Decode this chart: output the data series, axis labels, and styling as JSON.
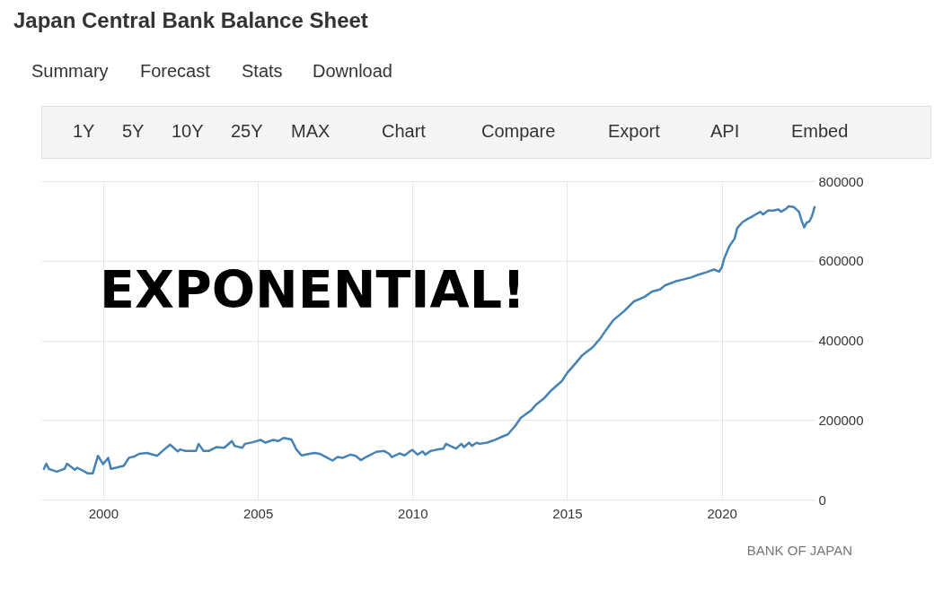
{
  "chart_data": [
    {
      "type": "other",
      "title": "Japan Central Bank Balance Sheet",
      "annotations": [
        "Summary",
        "Forecast",
        "Stats",
        "Download",
        "1Y",
        "5Y",
        "10Y",
        "25Y",
        "MAX",
        "Chart",
        "Compare",
        "Export",
        "API",
        "Embed"
      ]
    },
    {
      "type": "line",
      "x": [
        "1998-02",
        "1998-03",
        "1998-04",
        "1998-07",
        "1998-10",
        "1998-11",
        "1999-02",
        "1999-03",
        "1999-07",
        "1999-09",
        "1999-11",
        "2000-01",
        "2000-03",
        "2000-04",
        "2000-06",
        "2000-09",
        "2000-11",
        "2001-01",
        "2001-03",
        "2001-06",
        "2001-10",
        "2001-12",
        "2002-03",
        "2002-06",
        "2002-07",
        "2002-09",
        "2003-01",
        "2003-02",
        "2003-04",
        "2003-06",
        "2003-09",
        "2003-12",
        "2004-03",
        "2004-04",
        "2004-07",
        "2004-08",
        "2004-11",
        "2005-02",
        "2005-04",
        "2005-07",
        "2005-09",
        "2005-11",
        "2006-02",
        "2006-04",
        "2006-06",
        "2006-09",
        "2006-11",
        "2007-01",
        "2007-04",
        "2007-06",
        "2007-08",
        "2007-10",
        "2008-01",
        "2008-03",
        "2008-05",
        "2008-07",
        "2008-11",
        "2009-02",
        "2009-04",
        "2009-05",
        "2009-08",
        "2009-10",
        "2009-12",
        "2010-01",
        "2010-03",
        "2010-05",
        "2010-06",
        "2010-08",
        "2010-11",
        "2011-01",
        "2011-02",
        "2011-04",
        "2011-06",
        "2011-08",
        "2011-09",
        "2011-11",
        "2011-12",
        "2012-02",
        "2012-03",
        "2012-06",
        "2012-09",
        "2012-11",
        "2013-02",
        "2013-05",
        "2013-07",
        "2013-11",
        "2014-01",
        "2014-04",
        "2014-07",
        "2014-11",
        "2015-01",
        "2015-04",
        "2015-07",
        "2015-11",
        "2016-02",
        "2016-04",
        "2016-07",
        "2016-11",
        "2017-03",
        "2017-07",
        "2017-10",
        "2018-01",
        "2018-03",
        "2018-07",
        "2018-10",
        "2019-01",
        "2019-04",
        "2019-07",
        "2019-10",
        "2019-12",
        "2020-01",
        "2020-02",
        "2020-04",
        "2020-06",
        "2020-07",
        "2020-09",
        "2020-11",
        "2021-01",
        "2021-02",
        "2021-04",
        "2021-05",
        "2021-07",
        "2021-09",
        "2021-11",
        "2021-12",
        "2022-02",
        "2022-03",
        "2022-05",
        "2022-07",
        "2022-08",
        "2022-09",
        "2022-10",
        "2022-11",
        "2022-12",
        "2023-01"
      ],
      "series": [
        {
          "color": "#4682b4",
          "values": [
            77000,
            90000,
            77000,
            70000,
            77000,
            90000,
            75000,
            80000,
            66000,
            66000,
            110000,
            89000,
            105000,
            77000,
            80000,
            85000,
            105000,
            108000,
            115000,
            117000,
            110000,
            122000,
            138000,
            121000,
            126000,
            122000,
            122000,
            140000,
            122000,
            122000,
            132000,
            130000,
            147000,
            135000,
            130000,
            140000,
            144000,
            150000,
            143000,
            150000,
            147000,
            155000,
            151000,
            126000,
            111000,
            115000,
            117000,
            115000,
            105000,
            98000,
            107000,
            105000,
            113000,
            110000,
            99000,
            107000,
            120000,
            122000,
            115000,
            107000,
            116000,
            111000,
            121000,
            125000,
            113000,
            121000,
            113000,
            122000,
            126000,
            128000,
            140000,
            134000,
            128000,
            140000,
            132000,
            143000,
            135000,
            143000,
            140000,
            143000,
            150000,
            156000,
            164000,
            186000,
            205000,
            224000,
            239000,
            254000,
            275000,
            298000,
            318000,
            340000,
            363000,
            383000,
            406000,
            425000,
            451000,
            473000,
            498000,
            509000,
            523000,
            528000,
            538000,
            548000,
            553000,
            558000,
            565000,
            571000,
            578000,
            573000,
            583000,
            607000,
            637000,
            656000,
            682000,
            697000,
            705000,
            712000,
            716000,
            723000,
            716000,
            726000,
            726000,
            729000,
            723000,
            731000,
            737000,
            735000,
            723000,
            701000,
            684000,
            696000,
            699000,
            712000,
            735000
          ]
        }
      ],
      "xlim": [
        "1998-01",
        "2023-01"
      ],
      "xticks": [
        "2000",
        "2005",
        "2010",
        "2015",
        "2020"
      ],
      "ylim": [
        0,
        800000
      ],
      "yticks": [
        0,
        200000,
        400000,
        600000,
        800000
      ],
      "grid": true,
      "annotations": [
        "EXPONENTIAL!",
        "BANK OF JAPAN"
      ]
    }
  ]
}
